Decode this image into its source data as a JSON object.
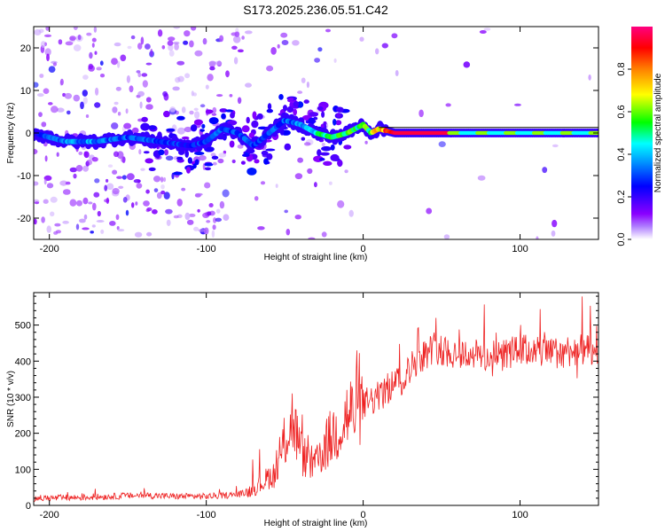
{
  "title": "S173.2025.236.05.51.C42",
  "chart_data": [
    {
      "type": "heatmap",
      "xlabel": "Height of straight line (km)",
      "ylabel": "Frequency (Hz)",
      "xlim": [
        -210,
        150
      ],
      "ylim": [
        -25,
        25
      ],
      "xticks": [
        -200,
        -100,
        0,
        100
      ],
      "yticks": [
        -20,
        -10,
        0,
        10,
        20
      ],
      "colorbar": {
        "label": "Normalized spectral amplitude",
        "range": [
          0.0,
          1.0
        ],
        "ticks": [
          0.0,
          0.2,
          0.4,
          0.6,
          0.8
        ],
        "tick_labels": [
          "0.0",
          "0.2",
          "0.4",
          "0.6",
          "0.8"
        ],
        "colors": [
          "#ffffff",
          "#8a00ff",
          "#0000ff",
          "#00ffff",
          "#00ff00",
          "#ffff00",
          "#ff8000",
          "#ff0000",
          "#ff0080"
        ]
      },
      "ridge": {
        "x": [
          -210,
          -190,
          -170,
          -150,
          -130,
          -110,
          -100,
          -90,
          -80,
          -70,
          -60,
          -50,
          -40,
          -30,
          -20,
          -10,
          0,
          5,
          10,
          20,
          60,
          100,
          150
        ],
        "y": [
          0,
          -2,
          -2,
          -1,
          -2,
          -3,
          -2,
          1,
          0,
          -3,
          0,
          3,
          2,
          0,
          -1,
          0,
          2,
          0,
          1,
          0,
          0,
          0,
          0
        ],
        "amplitude": [
          0.25,
          0.35,
          0.35,
          0.3,
          0.3,
          0.25,
          0.3,
          0.3,
          0.3,
          0.3,
          0.3,
          0.3,
          0.35,
          0.45,
          0.5,
          0.55,
          0.5,
          0.6,
          0.7,
          0.95,
          0.95,
          0.6,
          0.6
        ]
      }
    },
    {
      "type": "line",
      "xlabel": "Height of straight line (km)",
      "ylabel": "SNR (10 * v/v)",
      "xlim": [
        -210,
        150
      ],
      "ylim": [
        0,
        590
      ],
      "xticks": [
        -200,
        -100,
        0,
        100
      ],
      "yticks": [
        0,
        100,
        200,
        300,
        400,
        500
      ],
      "color": "#ee2222",
      "series": [
        {
          "name": "SNR",
          "x": [
            -210,
            -200,
            -180,
            -160,
            -140,
            -120,
            -100,
            -90,
            -80,
            -75,
            -70,
            -65,
            -60,
            -55,
            -50,
            -45,
            -40,
            -35,
            -30,
            -25,
            -20,
            -15,
            -10,
            -5,
            0,
            5,
            10,
            15,
            20,
            25,
            30,
            35,
            40,
            45,
            50,
            60,
            70,
            80,
            90,
            100,
            110,
            120,
            130,
            140,
            150
          ],
          "y": [
            20,
            20,
            22,
            25,
            28,
            25,
            25,
            27,
            30,
            35,
            45,
            60,
            80,
            90,
            180,
            240,
            150,
            120,
            110,
            160,
            190,
            220,
            250,
            260,
            280,
            290,
            300,
            320,
            340,
            350,
            380,
            410,
            420,
            440,
            430,
            420,
            420,
            410,
            420,
            430,
            430,
            420,
            430,
            430,
            420
          ]
        }
      ]
    }
  ]
}
